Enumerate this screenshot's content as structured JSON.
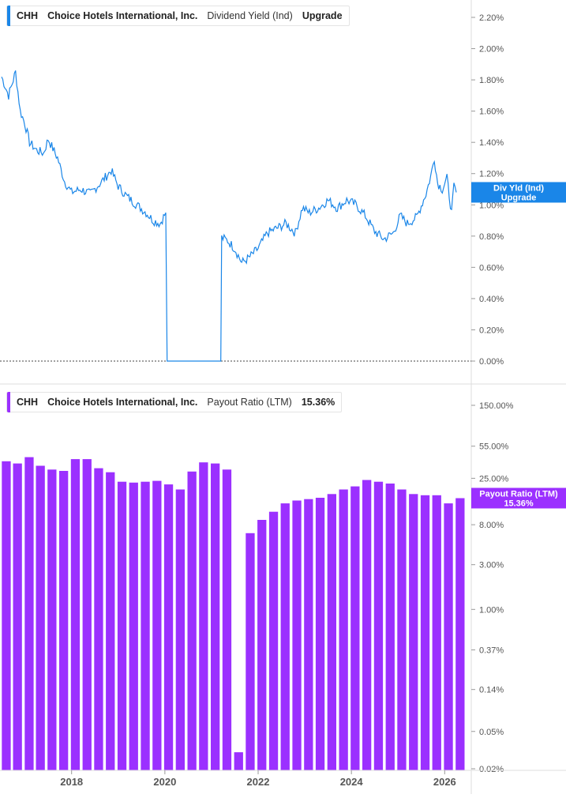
{
  "colors": {
    "yield_line": "#1a86e8",
    "payout_bar": "#9b30ff",
    "axis": "#dddddd",
    "tick_text": "#555555"
  },
  "legend_top": {
    "ticker": "CHH",
    "company": "Choice Hotels International, Inc.",
    "metric": "Dividend Yield (Ind)",
    "value": "Upgrade"
  },
  "legend_bottom": {
    "ticker": "CHH",
    "company": "Choice Hotels International, Inc.",
    "metric": "Payout Ratio (LTM)",
    "value": "15.36%"
  },
  "tags": {
    "top_line1": "Div Yld (Ind)",
    "top_line2": "Upgrade",
    "bottom_line1": "Payout Ratio (LTM)",
    "bottom_line2": "15.36%"
  },
  "chart_data": [
    {
      "type": "line",
      "title": "CHH Choice Hotels International, Inc. Dividend Yield (Ind)",
      "ylim": [
        0,
        2.3
      ],
      "y_tick_values": [
        0,
        0.2,
        0.4,
        0.6,
        0.8,
        1.0,
        1.2,
        1.4,
        1.6,
        1.8,
        2.0,
        2.2
      ],
      "y_tick_labels": [
        "0.00%",
        "0.20%",
        "0.40%",
        "0.60%",
        "0.80%",
        "1.00%",
        "1.20%",
        "1.40%",
        "1.60%",
        "1.80%",
        "2.00%",
        "2.20%"
      ],
      "zero_line": "dotted",
      "series": [
        {
          "x": [
            2016.6,
            2016.75,
            2016.9,
            2017.0,
            2017.1,
            2017.2,
            2017.35,
            2017.5,
            2017.6,
            2017.8,
            2017.95,
            2018.1,
            2018.3,
            2018.5,
            2018.75,
            2018.95,
            2019.1,
            2019.3,
            2019.5,
            2019.7,
            2019.85,
            2020.0,
            2020.12,
            2020.15,
            2021.3,
            2021.32,
            2021.45,
            2021.6,
            2021.75,
            2021.9,
            2022.1,
            2022.3,
            2022.5,
            2022.7,
            2022.9,
            2023.05,
            2023.2,
            2023.4,
            2023.6,
            2023.8,
            2024.0,
            2024.2,
            2024.4,
            2024.6,
            2024.8,
            2025.0,
            2025.15,
            2025.3,
            2025.5,
            2025.7,
            2025.8,
            2025.88,
            2025.95,
            2026.05,
            2026.15,
            2026.25,
            2026.3,
            2026.35
          ],
          "y": [
            1.82,
            1.7,
            1.85,
            1.6,
            1.52,
            1.4,
            1.35,
            1.33,
            1.42,
            1.3,
            1.15,
            1.08,
            1.1,
            1.07,
            1.15,
            1.22,
            1.12,
            1.05,
            1.0,
            0.95,
            0.9,
            0.88,
            0.95,
            0.0,
            0.0,
            0.79,
            0.77,
            0.72,
            0.63,
            0.66,
            0.72,
            0.82,
            0.85,
            0.88,
            0.82,
            0.98,
            0.95,
            0.98,
            1.03,
            0.98,
            1.03,
            1.0,
            0.93,
            0.83,
            0.78,
            0.82,
            0.93,
            0.88,
            0.92,
            1.07,
            1.18,
            1.3,
            1.14,
            1.1,
            1.17,
            0.95,
            1.12,
            1.08
          ]
        }
      ]
    },
    {
      "type": "bar",
      "title": "CHH Choice Hotels International, Inc. Payout Ratio (LTM)",
      "y_scale": "log",
      "y_tick_values": [
        0.02,
        0.05,
        0.14,
        0.37,
        1.0,
        3.0,
        8.0,
        25.0,
        55.0,
        150.0
      ],
      "y_tick_labels": [
        "0.02%",
        "0.05%",
        "0.14%",
        "0.37%",
        "1.00%",
        "3.00%",
        "8.00%",
        "25.00%",
        "55.00%",
        "150.00%"
      ],
      "x": [
        2016.6,
        2016.84,
        2017.09,
        2017.33,
        2017.58,
        2017.83,
        2018.08,
        2018.33,
        2018.58,
        2018.83,
        2019.08,
        2019.33,
        2019.58,
        2019.83,
        2020.08,
        2020.33,
        2020.58,
        2020.83,
        2021.08,
        2021.33,
        2021.58,
        2021.83,
        2022.08,
        2022.33,
        2022.58,
        2022.83,
        2023.08,
        2023.33,
        2023.58,
        2023.83,
        2024.08,
        2024.33,
        2024.58,
        2024.83,
        2025.08,
        2025.33,
        2025.58,
        2025.83,
        2026.08,
        2026.33
      ],
      "values": [
        38.0,
        36.0,
        42.0,
        34.0,
        31.0,
        30.0,
        40.0,
        40.0,
        32.0,
        29.0,
        23.0,
        22.5,
        23.0,
        23.5,
        21.5,
        19.0,
        29.5,
        37.0,
        36.0,
        31.0,
        0.03,
        6.5,
        9.0,
        11.0,
        13.5,
        14.5,
        15.0,
        15.5,
        17.0,
        19.0,
        20.5,
        24.0,
        23.0,
        22.0,
        19.0,
        17.0,
        16.5,
        16.5,
        13.5,
        15.36
      ],
      "name": "Payout Ratio (LTM)"
    }
  ],
  "x_axis": {
    "years": [
      2018,
      2020,
      2022,
      2024,
      2026
    ],
    "labels": [
      "2018",
      "2020",
      "2022",
      "2024",
      "2026"
    ]
  }
}
